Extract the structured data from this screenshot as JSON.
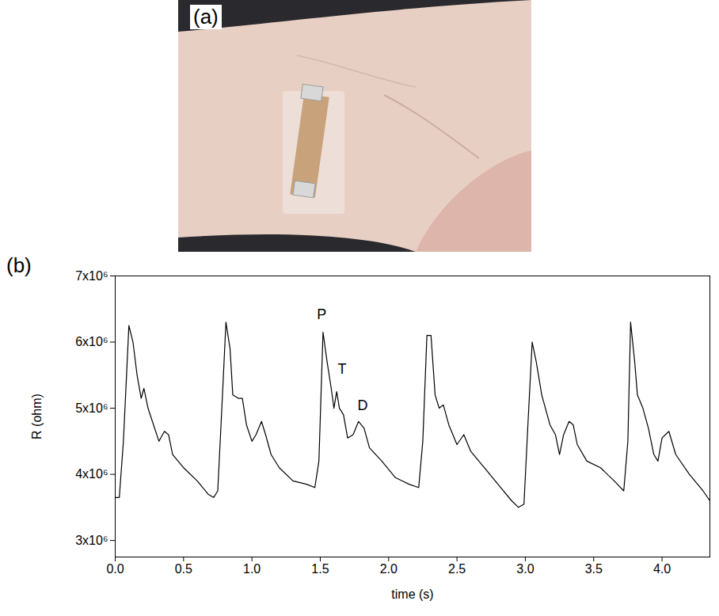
{
  "photo_panel": {
    "panel_label": "(a)"
  },
  "chart_data": {
    "type": "line",
    "panel_label": "(b)",
    "x_label": "time (s)",
    "y_label": "R (ohm)",
    "color": "#000000",
    "xlim": [
      0,
      4.35
    ],
    "xticks": [
      {
        "value": 0,
        "label": "0.0"
      },
      0.5,
      {
        "value": 1,
        "label": "1.0"
      },
      1.5,
      {
        "value": 2,
        "label": "2.0"
      },
      2.5,
      {
        "value": 3,
        "label": "3.0"
      },
      3.5,
      {
        "value": 4,
        "label": "4.0"
      }
    ],
    "ylim": [
      2750000,
      7000000
    ],
    "yticks": [
      {
        "value": 3000000,
        "label": "3x10⁶"
      },
      {
        "value": 4000000,
        "label": "4x10⁶"
      },
      {
        "value": 5000000,
        "label": "5x10⁶"
      },
      {
        "value": 6000000,
        "label": "6x10⁶"
      },
      {
        "value": 7000000,
        "label": "7x10⁶"
      }
    ],
    "x": [
      0.0,
      0.03,
      0.06,
      0.1,
      0.13,
      0.16,
      0.19,
      0.21,
      0.24,
      0.28,
      0.32,
      0.36,
      0.39,
      0.42,
      0.5,
      0.6,
      0.68,
      0.72,
      0.75,
      0.78,
      0.81,
      0.84,
      0.86,
      0.9,
      0.93,
      0.96,
      1.0,
      1.03,
      1.07,
      1.1,
      1.14,
      1.2,
      1.3,
      1.4,
      1.46,
      1.49,
      1.52,
      1.55,
      1.58,
      1.6,
      1.62,
      1.64,
      1.67,
      1.7,
      1.74,
      1.78,
      1.82,
      1.86,
      1.95,
      2.05,
      2.15,
      2.22,
      2.25,
      2.28,
      2.31,
      2.34,
      2.37,
      2.4,
      2.44,
      2.5,
      2.55,
      2.6,
      2.7,
      2.8,
      2.9,
      2.95,
      2.99,
      3.02,
      3.05,
      3.08,
      3.12,
      3.18,
      3.22,
      3.25,
      3.28,
      3.32,
      3.35,
      3.38,
      3.45,
      3.55,
      3.65,
      3.72,
      3.75,
      3.77,
      3.8,
      3.82,
      3.86,
      3.9,
      3.94,
      3.97,
      4.0,
      4.05,
      4.1,
      4.2,
      4.3,
      4.35
    ],
    "values": [
      3650000,
      3650000,
      4500000,
      6250000,
      6000000,
      5500000,
      5150000,
      5300000,
      5000000,
      4750000,
      4500000,
      4650000,
      4600000,
      4300000,
      4100000,
      3900000,
      3700000,
      3650000,
      3750000,
      5000000,
      6300000,
      5900000,
      5200000,
      5150000,
      5150000,
      4750000,
      4500000,
      4600000,
      4800000,
      4600000,
      4300000,
      4100000,
      3900000,
      3850000,
      3800000,
      4200000,
      6150000,
      5700000,
      5300000,
      5000000,
      5250000,
      5000000,
      4900000,
      4550000,
      4600000,
      4800000,
      4700000,
      4400000,
      4200000,
      3950000,
      3850000,
      3800000,
      4500000,
      6100000,
      6100000,
      5200000,
      5000000,
      5050000,
      4750000,
      4450000,
      4600000,
      4350000,
      4100000,
      3850000,
      3600000,
      3500000,
      3550000,
      4800000,
      6000000,
      5700000,
      5200000,
      4750000,
      4600000,
      4300000,
      4600000,
      4800000,
      4750000,
      4450000,
      4200000,
      4100000,
      3900000,
      3750000,
      4500000,
      6300000,
      5700000,
      5200000,
      5000000,
      4700000,
      4300000,
      4200000,
      4550000,
      4650000,
      4300000,
      4000000,
      3750000,
      3600000
    ],
    "annotations": [
      {
        "text": "P",
        "x": 1.51,
        "y": 6420000
      },
      {
        "text": "T",
        "x": 1.66,
        "y": 5590000
      },
      {
        "text": "D",
        "x": 1.81,
        "y": 5040000
      }
    ]
  }
}
